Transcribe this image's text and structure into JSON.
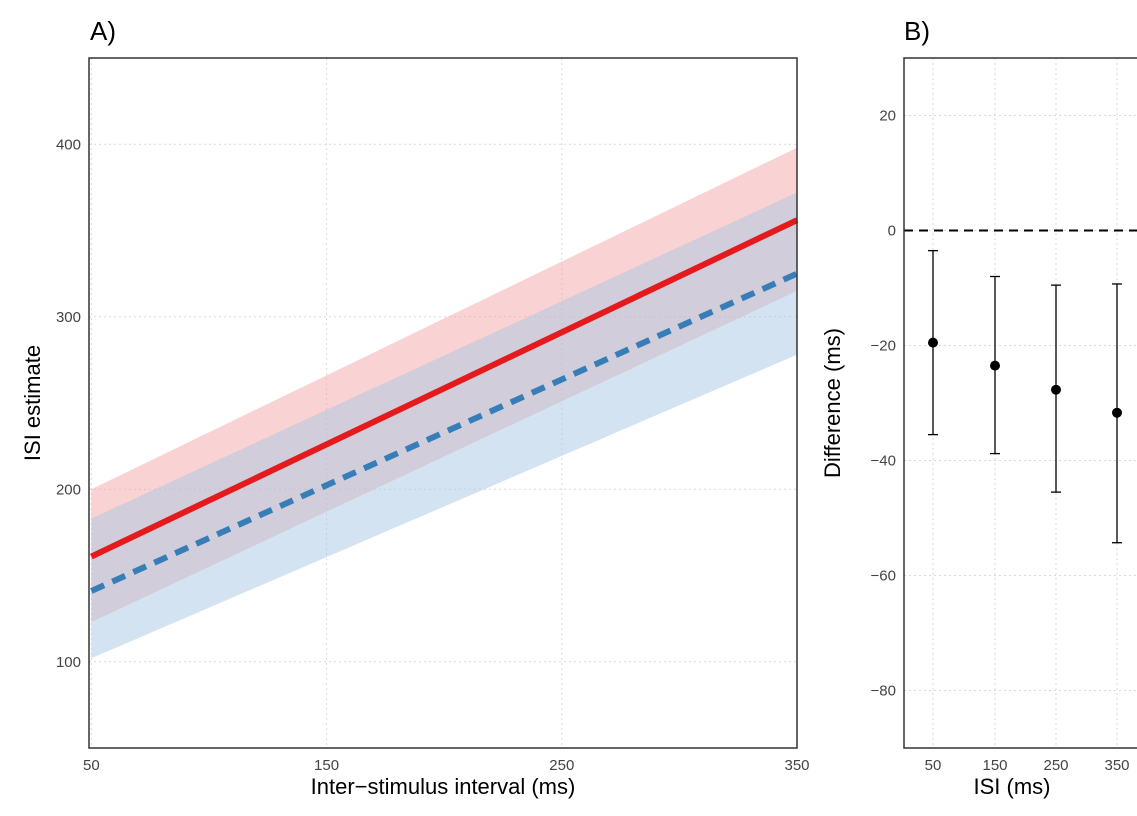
{
  "chart_data": [
    {
      "panel_label": "A)",
      "type": "line",
      "xlabel": "Inter−stimulus interval (ms)",
      "ylabel": "ISI estimate",
      "xlim": [
        49,
        350
      ],
      "ylim": [
        50,
        450
      ],
      "xticks": [
        50,
        150,
        250,
        350
      ],
      "yticks": [
        100,
        200,
        300,
        400
      ],
      "grid": true,
      "legend": "none",
      "series": [
        {
          "color": "#e41a1c",
          "line_style": "solid",
          "ribbon_color": "#f4a6a8",
          "x": [
            50,
            350
          ],
          "y": [
            161,
            356
          ],
          "lower": [
            123,
            315
          ],
          "upper": [
            200,
            398
          ]
        },
        {
          "color": "#377eb8",
          "line_style": "dashed",
          "ribbon_color": "#a9c7e3",
          "x": [
            50,
            350
          ],
          "y": [
            141,
            325
          ],
          "lower": [
            102,
            278
          ],
          "upper": [
            183,
            372
          ]
        }
      ]
    },
    {
      "panel_label": "B)",
      "type": "scatter",
      "xlabel": "ISI (ms)",
      "ylabel": "Difference (ms)",
      "categories": [
        "50",
        "150",
        "250",
        "350"
      ],
      "ylim": [
        -90,
        30
      ],
      "yticks": [
        20,
        0,
        -20,
        -40,
        -60,
        -80
      ],
      "reference_line": 0,
      "grid": true,
      "legend": "none",
      "points": [
        {
          "x": "50",
          "y": -19.5,
          "lower": -35.5,
          "upper": -3.5
        },
        {
          "x": "150",
          "y": -23.5,
          "lower": -38.8,
          "upper": -8.0
        },
        {
          "x": "250",
          "y": -27.7,
          "lower": -45.5,
          "upper": -9.5
        },
        {
          "x": "350",
          "y": -31.7,
          "lower": -54.3,
          "upper": -9.3
        }
      ]
    }
  ]
}
